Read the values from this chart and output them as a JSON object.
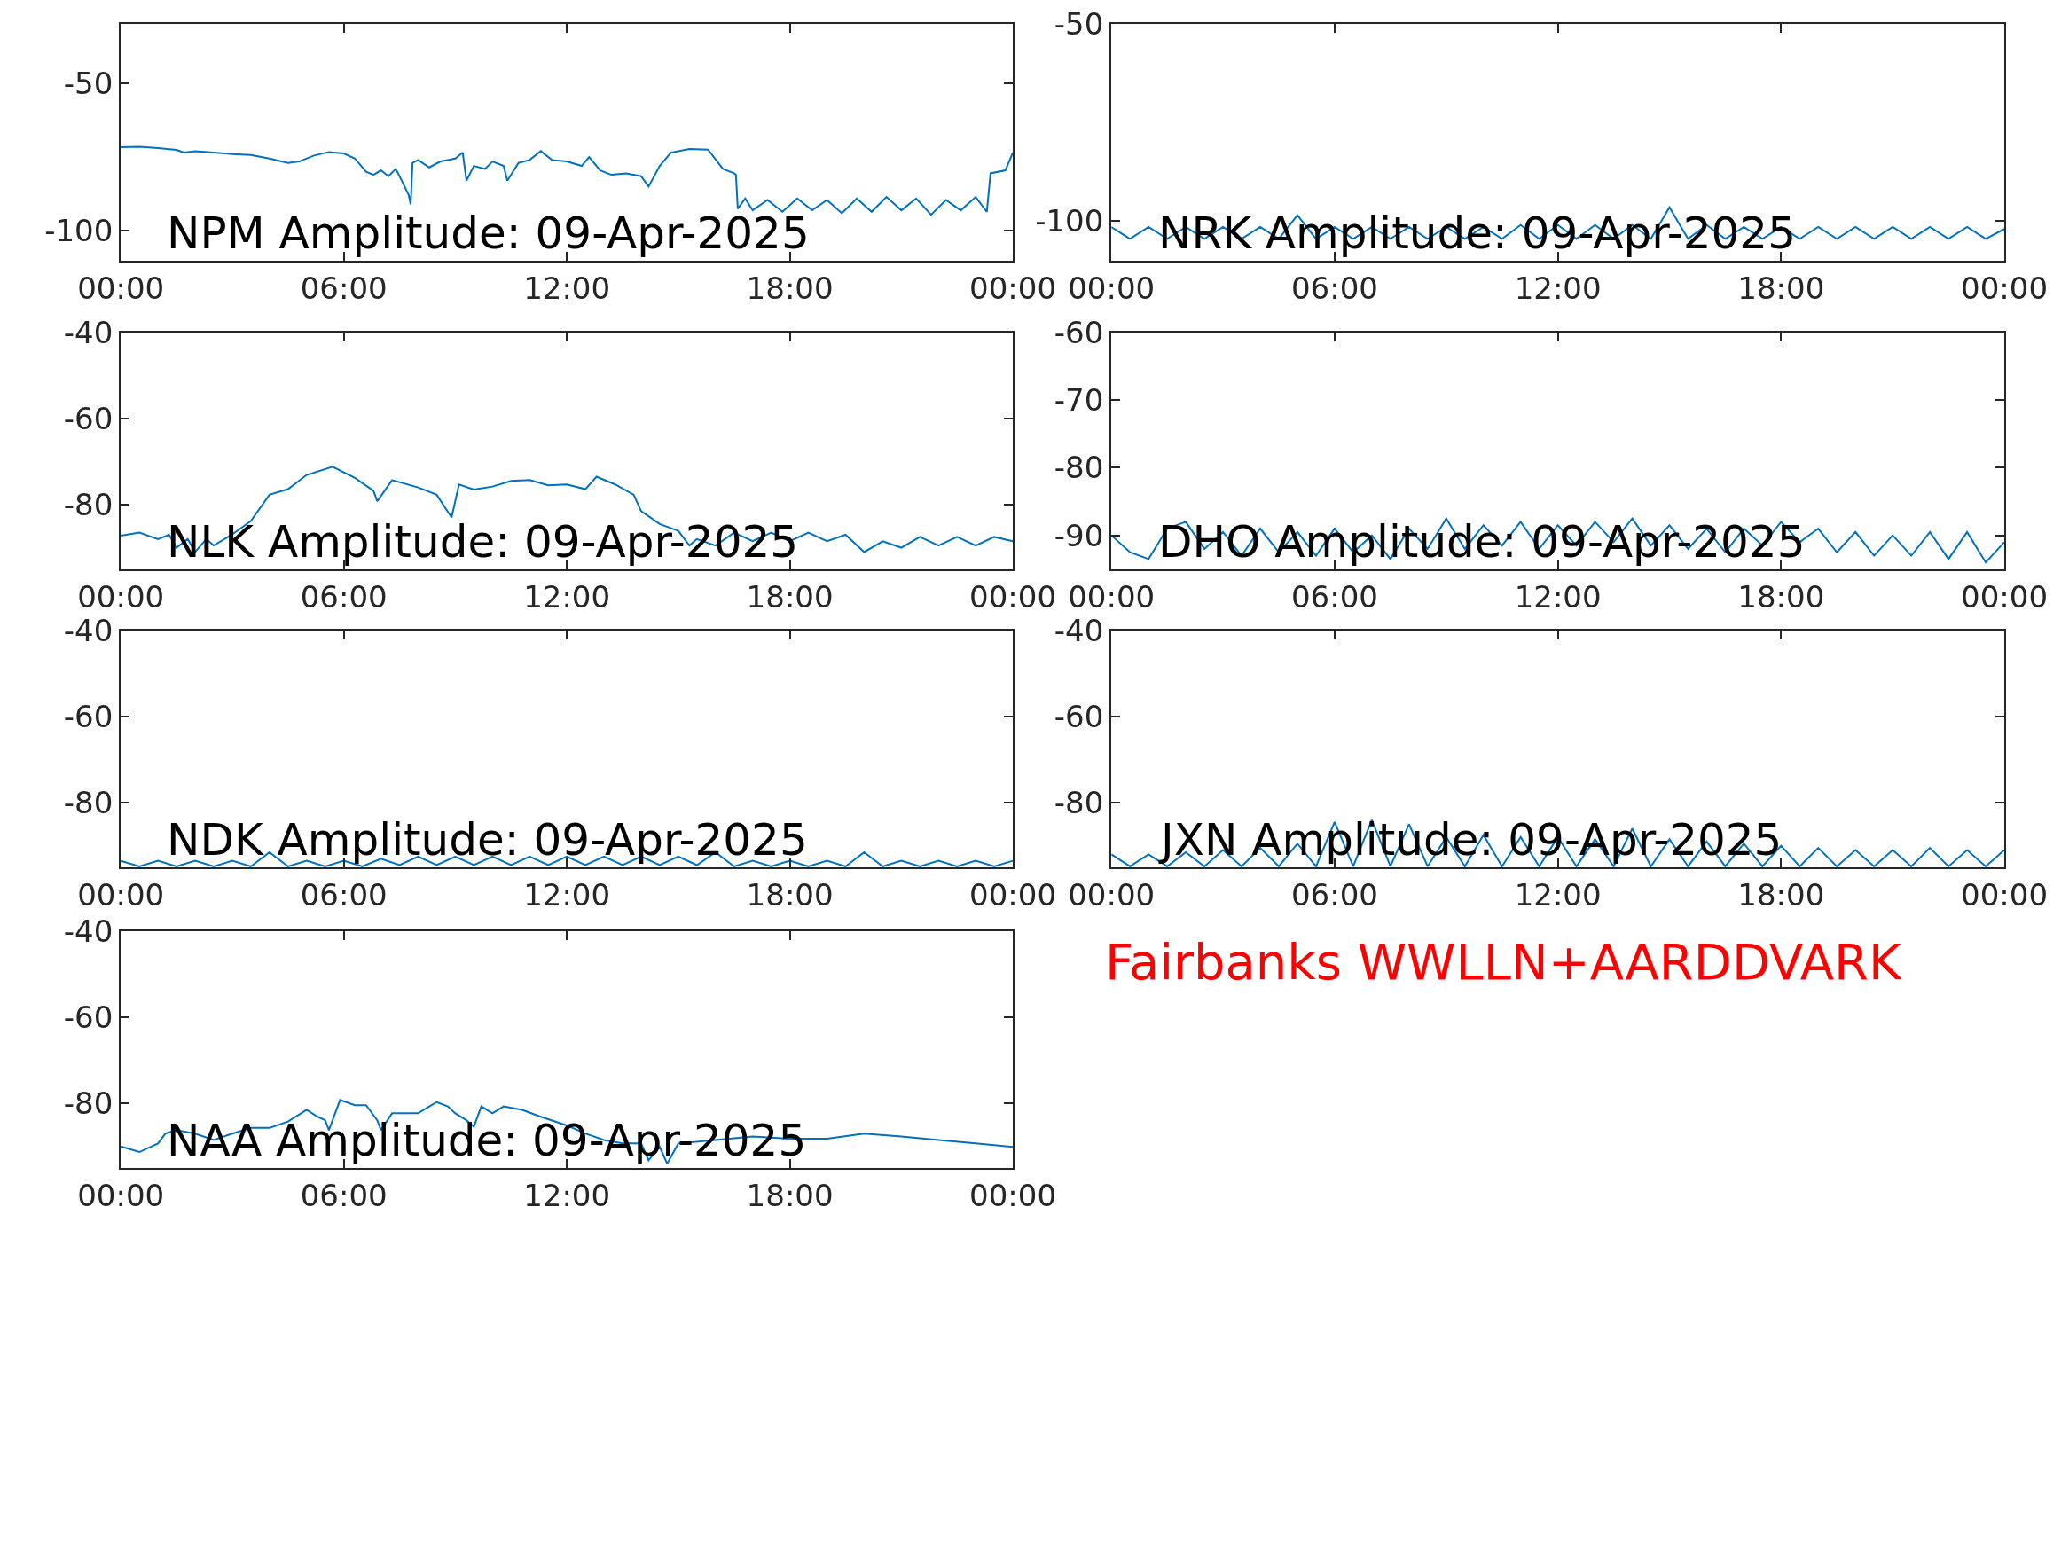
{
  "chart_data": [
    {
      "type": "line",
      "title": "NPM Amplitude: 09-Apr-2025",
      "xlim": [
        0,
        24
      ],
      "xticks": [
        {
          "value": 0,
          "label": "00:00"
        },
        {
          "value": 6,
          "label": "06:00"
        },
        {
          "value": 12,
          "label": "12:00"
        },
        {
          "value": 18,
          "label": "18:00"
        },
        {
          "value": 24,
          "label": "00:00"
        }
      ],
      "ylim": [
        -110,
        -30
      ],
      "yticks": [
        -100,
        -50
      ],
      "x": [
        0,
        0.5,
        1,
        1.5,
        1.7,
        2,
        2.5,
        3,
        3.5,
        4,
        4.5,
        4.8,
        5.2,
        5.6,
        6,
        6.3,
        6.6,
        6.8,
        7,
        7.2,
        7.4,
        7.6,
        7.75,
        7.8,
        7.85,
        8,
        8.3,
        8.6,
        9,
        9.2,
        9.3,
        9.5,
        9.8,
        10,
        10.3,
        10.4,
        10.7,
        11,
        11.3,
        11.6,
        12,
        12.4,
        12.6,
        12.9,
        13.2,
        13.6,
        14,
        14.2,
        14.5,
        14.8,
        15.3,
        15.8,
        16.2,
        16.5,
        16.55,
        16.6,
        16.8,
        17,
        17.4,
        17.8,
        18.2,
        18.6,
        19,
        19.4,
        19.8,
        20.2,
        20.6,
        21,
        21.4,
        21.8,
        22.2,
        22.6,
        23,
        23.3,
        23.4,
        23.8,
        24
      ],
      "series": [
        {
          "color": "#0072bd",
          "values": [
            -71.7,
            -71.5,
            -72,
            -72.6,
            -73.5,
            -73,
            -73.5,
            -74,
            -74.3,
            -75.5,
            -77,
            -76.5,
            -74.5,
            -73.3,
            -73.8,
            -75.5,
            -80,
            -81,
            -79.5,
            -81.5,
            -79,
            -84,
            -88,
            -91,
            -77,
            -76,
            -78.5,
            -76.5,
            -75.5,
            -73.5,
            -83,
            -78,
            -79,
            -76.5,
            -78,
            -83,
            -77,
            -76,
            -73,
            -76,
            -76.5,
            -78,
            -75,
            -79.5,
            -81,
            -80.5,
            -81.5,
            -85,
            -78,
            -73.5,
            -72.3,
            -72.5,
            -79,
            -80.5,
            -81,
            -92.5,
            -89,
            -93,
            -89.5,
            -93.5,
            -89,
            -93,
            -89.5,
            -94,
            -89,
            -93.5,
            -88.5,
            -93,
            -89,
            -94.5,
            -89.5,
            -93,
            -88.5,
            -93.5,
            -80.5,
            -79.5,
            -73.5
          ]
        }
      ]
    },
    {
      "type": "line",
      "title": "NRK Amplitude: 09-Apr-2025",
      "xlim": [
        0,
        24
      ],
      "xticks": [
        {
          "value": 0,
          "label": "00:00"
        },
        {
          "value": 6,
          "label": "06:00"
        },
        {
          "value": 12,
          "label": "12:00"
        },
        {
          "value": 18,
          "label": "18:00"
        },
        {
          "value": 24,
          "label": "00:00"
        }
      ],
      "ylim": [
        -110,
        -50
      ],
      "yticks": [
        -100,
        -50
      ],
      "x": [
        0,
        0.5,
        1,
        1.5,
        2,
        2.5,
        3,
        3.5,
        4,
        4.5,
        5,
        5.5,
        6,
        6.5,
        7,
        7.5,
        8,
        8.5,
        9,
        9.5,
        10,
        10.5,
        11,
        11.5,
        12,
        12.5,
        13,
        13.5,
        14,
        14.5,
        15,
        15.5,
        16,
        16.5,
        17,
        17.5,
        18,
        18.5,
        19,
        19.5,
        20,
        20.5,
        21,
        21.5,
        22,
        22.5,
        23,
        23.5,
        24
      ],
      "series": [
        {
          "color": "#0072bd",
          "values": [
            -101.5,
            -104.5,
            -101.5,
            -104.5,
            -101.5,
            -104.5,
            -101.5,
            -104.5,
            -101.5,
            -104.5,
            -98.5,
            -104.5,
            -101.5,
            -104.5,
            -101.5,
            -104.5,
            -101.5,
            -104.5,
            -101.5,
            -104.5,
            -101.5,
            -104.5,
            -101,
            -104.5,
            -101,
            -104.5,
            -101,
            -104.5,
            -101,
            -104.5,
            -96.5,
            -104.5,
            -101,
            -104.5,
            -101.5,
            -104.5,
            -101.5,
            -104.5,
            -101.5,
            -104.5,
            -101.5,
            -104.5,
            -101.5,
            -104.5,
            -101.5,
            -104.5,
            -101.5,
            -104.5,
            -102
          ]
        }
      ]
    },
    {
      "type": "line",
      "title": "NLK Amplitude: 09-Apr-2025",
      "xlim": [
        0,
        24
      ],
      "xticks": [
        {
          "value": 0,
          "label": "00:00"
        },
        {
          "value": 6,
          "label": "06:00"
        },
        {
          "value": 12,
          "label": "12:00"
        },
        {
          "value": 18,
          "label": "18:00"
        },
        {
          "value": 24,
          "label": "00:00"
        }
      ],
      "ylim": [
        -95,
        -40
      ],
      "yticks": [
        -80,
        -60,
        -40
      ],
      "x": [
        0,
        0.5,
        1,
        1.3,
        1.5,
        1.8,
        2,
        2.3,
        2.5,
        3,
        3.5,
        4,
        4.5,
        5,
        5.7,
        6.3,
        6.8,
        6.9,
        7.3,
        8,
        8.5,
        8.9,
        9.1,
        9.5,
        10,
        10.5,
        11,
        11.5,
        12,
        12.5,
        12.8,
        13.3,
        13.8,
        14,
        14.5,
        15,
        15.3,
        15.5,
        16,
        16.5,
        17,
        17.5,
        18,
        18.5,
        19,
        19.5,
        20,
        20.5,
        21,
        21.5,
        22,
        22.5,
        23,
        23.5,
        24
      ],
      "series": [
        {
          "color": "#0072bd",
          "values": [
            -87.2,
            -86.5,
            -88,
            -87,
            -90,
            -88,
            -91,
            -88,
            -89.5,
            -86.9,
            -83.8,
            -77.7,
            -76.4,
            -73.1,
            -71.2,
            -73.8,
            -76.8,
            -79.2,
            -74.3,
            -76,
            -77.7,
            -83,
            -75.3,
            -76.5,
            -75.8,
            -74.5,
            -74.3,
            -75.5,
            -75.3,
            -76.4,
            -73.5,
            -75.3,
            -77.7,
            -81.5,
            -84.5,
            -86.1,
            -89.5,
            -88,
            -89.5,
            -86.5,
            -88.5,
            -86.5,
            -88.5,
            -86.5,
            -88.5,
            -87,
            -91,
            -88.5,
            -90,
            -87.5,
            -89.5,
            -87.5,
            -89.5,
            -87.5,
            -88.5
          ]
        }
      ]
    },
    {
      "type": "line",
      "title": "DHO Amplitude: 09-Apr-2025",
      "xlim": [
        0,
        24
      ],
      "xticks": [
        {
          "value": 0,
          "label": "00:00"
        },
        {
          "value": 6,
          "label": "06:00"
        },
        {
          "value": 12,
          "label": "12:00"
        },
        {
          "value": 18,
          "label": "18:00"
        },
        {
          "value": 24,
          "label": "00:00"
        }
      ],
      "ylim": [
        -95,
        -60
      ],
      "yticks": [
        -90,
        -80,
        -70,
        -60
      ],
      "x": [
        0,
        0.5,
        1,
        1.5,
        2,
        2.5,
        3,
        3.5,
        4,
        4.5,
        5,
        5.5,
        6,
        6.5,
        7,
        7.5,
        8,
        8.5,
        9,
        9.5,
        10,
        10.5,
        11,
        11.5,
        12,
        12.5,
        13,
        13.5,
        14,
        14.5,
        15,
        15.5,
        16,
        16.5,
        17,
        17.5,
        18,
        18.5,
        19,
        19.5,
        20,
        20.5,
        21,
        21.5,
        22,
        22.5,
        23,
        23.5,
        24
      ],
      "series": [
        {
          "color": "#0072bd",
          "values": [
            -90,
            -92.5,
            -93.5,
            -89,
            -88,
            -92,
            -89.5,
            -93,
            -89,
            -92.5,
            -89.5,
            -93,
            -89,
            -92.5,
            -90,
            -93.5,
            -89,
            -92,
            -87.5,
            -92,
            -88.5,
            -91.5,
            -88,
            -92,
            -88.5,
            -91.5,
            -88,
            -91,
            -87.5,
            -91.5,
            -88.5,
            -92,
            -89,
            -92.5,
            -89,
            -91.5,
            -88,
            -91,
            -89,
            -92.5,
            -89.5,
            -93,
            -90,
            -93,
            -89.5,
            -93.5,
            -89.5,
            -94,
            -91
          ]
        }
      ]
    },
    {
      "type": "line",
      "title": "NDK Amplitude: 09-Apr-2025",
      "xlim": [
        0,
        24
      ],
      "xticks": [
        {
          "value": 0,
          "label": "00:00"
        },
        {
          "value": 6,
          "label": "06:00"
        },
        {
          "value": 12,
          "label": "12:00"
        },
        {
          "value": 18,
          "label": "18:00"
        },
        {
          "value": 24,
          "label": "00:00"
        }
      ],
      "ylim": [
        -95,
        -40
      ],
      "yticks": [
        -80,
        -60,
        -40
      ],
      "x": [
        0,
        0.5,
        1,
        1.5,
        2,
        2.5,
        3,
        3.5,
        4,
        4.5,
        5,
        5.5,
        6,
        6.5,
        7,
        7.5,
        8,
        8.5,
        9,
        9.5,
        10,
        10.5,
        11,
        11.5,
        12,
        12.5,
        13,
        13.5,
        14,
        14.5,
        15,
        15.5,
        16,
        16.5,
        17,
        17.5,
        18,
        18.5,
        19,
        19.5,
        20,
        20.5,
        21,
        21.5,
        22,
        22.5,
        23,
        23.5,
        24
      ],
      "series": [
        {
          "color": "#0072bd",
          "values": [
            -93.5,
            -94.8,
            -93.5,
            -94.8,
            -93.5,
            -94.8,
            -93.5,
            -94.8,
            -91.5,
            -94.8,
            -93.5,
            -94.8,
            -93.5,
            -94.8,
            -93,
            -94.5,
            -92.5,
            -94.5,
            -92.5,
            -94.5,
            -92.5,
            -94.5,
            -92.5,
            -94.5,
            -92.5,
            -94.5,
            -92.5,
            -94.5,
            -92.5,
            -94.5,
            -92.5,
            -94.5,
            -91.5,
            -94.8,
            -93.5,
            -94.8,
            -93.5,
            -94.8,
            -93.5,
            -94.8,
            -91.5,
            -94.8,
            -93.5,
            -94.8,
            -93.5,
            -94.8,
            -93.5,
            -94.8,
            -93.5
          ]
        }
      ]
    },
    {
      "type": "line",
      "title": "JXN Amplitude: 09-Apr-2025",
      "xlim": [
        0,
        24
      ],
      "xticks": [
        {
          "value": 0,
          "label": "00:00"
        },
        {
          "value": 6,
          "label": "06:00"
        },
        {
          "value": 12,
          "label": "12:00"
        },
        {
          "value": 18,
          "label": "18:00"
        },
        {
          "value": 24,
          "label": "00:00"
        }
      ],
      "ylim": [
        -95,
        -40
      ],
      "yticks": [
        -80,
        -60,
        -40
      ],
      "x": [
        0,
        0.5,
        1,
        1.5,
        2,
        2.5,
        3,
        3.5,
        4,
        4.5,
        5,
        5.5,
        6,
        6.5,
        7,
        7.5,
        8,
        8.5,
        9,
        9.5,
        10,
        10.5,
        11,
        11.5,
        12,
        12.5,
        13,
        13.5,
        14,
        14.5,
        15,
        15.5,
        16,
        16.5,
        17,
        17.5,
        18,
        18.5,
        19,
        19.5,
        20,
        20.5,
        21,
        21.5,
        22,
        22.5,
        23,
        23.5,
        24
      ],
      "series": [
        {
          "color": "#0072bd",
          "values": [
            -92,
            -94.8,
            -92,
            -94.8,
            -91.5,
            -94.8,
            -91,
            -94.8,
            -90.5,
            -94.8,
            -89.5,
            -94.8,
            -84.5,
            -94.8,
            -84,
            -94.8,
            -85,
            -94.8,
            -88,
            -94.8,
            -87.5,
            -94.8,
            -88,
            -94.8,
            -88,
            -94.8,
            -88.5,
            -94.8,
            -86,
            -94.8,
            -88.5,
            -94.8,
            -89,
            -94.8,
            -89.5,
            -94.8,
            -90,
            -94.8,
            -90.5,
            -94.8,
            -91,
            -94.8,
            -91,
            -94.8,
            -90.5,
            -94.8,
            -91,
            -94.8,
            -91
          ]
        }
      ]
    },
    {
      "type": "line",
      "title": "NAA Amplitude: 09-Apr-2025",
      "xlim": [
        0,
        24
      ],
      "xticks": [
        {
          "value": 0,
          "label": "00:00"
        },
        {
          "value": 6,
          "label": "06:00"
        },
        {
          "value": 12,
          "label": "12:00"
        },
        {
          "value": 18,
          "label": "18:00"
        },
        {
          "value": 24,
          "label": "00:00"
        }
      ],
      "ylim": [
        -95,
        -40
      ],
      "yticks": [
        -80,
        -60,
        -40
      ],
      "x": [
        0,
        0.5,
        1,
        1.2,
        1.5,
        2,
        2.5,
        3,
        3.5,
        4,
        4.5,
        5,
        5.3,
        5.5,
        5.6,
        5.9,
        6.3,
        6.6,
        6.9,
        7,
        7.3,
        7.7,
        8,
        8.3,
        8.5,
        8.8,
        9,
        9.3,
        9.5,
        9.7,
        10,
        10.3,
        10.8,
        11.3,
        12,
        12.5,
        13,
        13.5,
        14,
        14.2,
        14.5,
        14.7,
        15,
        16,
        17,
        18,
        19,
        20,
        21,
        22,
        23,
        24
      ],
      "series": [
        {
          "color": "#0072bd",
          "values": [
            -90,
            -91.3,
            -89.3,
            -87,
            -86.2,
            -87,
            -88.5,
            -87,
            -85.7,
            -85.7,
            -84.2,
            -81.5,
            -83.1,
            -83.9,
            -86.2,
            -79.2,
            -80.4,
            -80.4,
            -83.9,
            -86.2,
            -82.3,
            -82.3,
            -82.3,
            -80.7,
            -79.7,
            -80.7,
            -82.3,
            -83.9,
            -85.4,
            -80.7,
            -82.3,
            -80.7,
            -81.5,
            -83.1,
            -85.1,
            -87,
            -88.5,
            -89.3,
            -89.3,
            -93.2,
            -90.1,
            -94,
            -89.3,
            -88.5,
            -87.7,
            -88.2,
            -88.2,
            -87,
            -87.7,
            -88.5,
            -89.3,
            -90.1
          ]
        }
      ]
    },
    {
      "type": "other",
      "title": "Fairbanks WWLLN+AARDDVARK",
      "color": "#ff0000"
    }
  ]
}
